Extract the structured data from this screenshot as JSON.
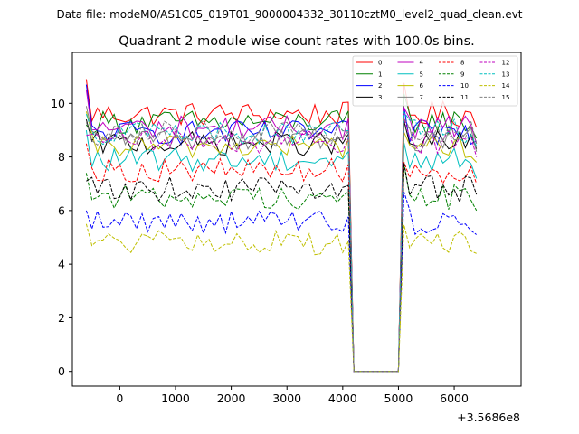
{
  "header": {
    "data_file": "Data file: modeM0/AS1C05_019T01_9000004332_30110cztM0_level2_quad_clean.evt"
  },
  "chart_data": {
    "type": "line",
    "title": "Quadrant 2 module wise count rates with 100.0s bins.",
    "xlabel": "",
    "ylabel": "",
    "x_offset_label": "+3.5686e8",
    "xlim": [
      -850,
      7200
    ],
    "ylim": [
      -0.55,
      11.9
    ],
    "x_ticks": [
      0,
      1000,
      2000,
      3000,
      4000,
      5000,
      6000
    ],
    "y_ticks": [
      0,
      2,
      4,
      6,
      8,
      10
    ],
    "legend_position": "top-right",
    "x_start": -600,
    "x_step": 100,
    "gap": {
      "drop_start": 4100,
      "zero_from": 4200,
      "zero_to": 5000,
      "rise_end": 5100,
      "x_end": 6400
    },
    "series": [
      {
        "name": "0",
        "color": "#ff0000",
        "dash": "solid",
        "level": 9.6,
        "start": 10.9,
        "end": 9.1
      },
      {
        "name": "1",
        "color": "#008000",
        "dash": "solid",
        "level": 9.3,
        "start": 9.2,
        "end": 8.7
      },
      {
        "name": "2",
        "color": "#0000ff",
        "dash": "solid",
        "level": 8.9,
        "start": 10.7,
        "end": 8.6
      },
      {
        "name": "3",
        "color": "#000000",
        "dash": "solid",
        "level": 8.5,
        "start": 9.4,
        "end": 8.3
      },
      {
        "name": "4",
        "color": "#bf00bf",
        "dash": "solid",
        "level": 9.1,
        "start": 10.5,
        "end": 8.5
      },
      {
        "name": "5",
        "color": "#00bfbf",
        "dash": "solid",
        "level": 7.9,
        "start": 9.0,
        "end": 7.2
      },
      {
        "name": "6",
        "color": "#bfbf00",
        "dash": "solid",
        "level": 8.4,
        "start": 9.7,
        "end": 7.8
      },
      {
        "name": "7",
        "color": "#808080",
        "dash": "solid",
        "level": 8.7,
        "start": 9.9,
        "end": 8.2
      },
      {
        "name": "8",
        "color": "#ff0000",
        "dash": "dashed",
        "level": 7.5,
        "start": 8.5,
        "end": 7.0
      },
      {
        "name": "9",
        "color": "#008000",
        "dash": "dashed",
        "level": 6.5,
        "start": 7.4,
        "end": 6.0
      },
      {
        "name": "10",
        "color": "#0000ff",
        "dash": "dashed",
        "level": 5.6,
        "start": 6.0,
        "end": 5.1
      },
      {
        "name": "11",
        "color": "#000000",
        "dash": "dashed",
        "level": 6.8,
        "start": 7.1,
        "end": 6.6
      },
      {
        "name": "12",
        "color": "#bf00bf",
        "dash": "dashed",
        "level": 8.6,
        "start": 8.8,
        "end": 8.0
      },
      {
        "name": "13",
        "color": "#00bfbf",
        "dash": "dashed",
        "level": 8.9,
        "start": 9.6,
        "end": 8.4
      },
      {
        "name": "14",
        "color": "#bfbf00",
        "dash": "dashed",
        "level": 4.8,
        "start": 5.5,
        "end": 4.4
      },
      {
        "name": "15",
        "color": "#808080",
        "dash": "dashed",
        "level": 8.9,
        "start": 9.3,
        "end": 8.5
      }
    ]
  }
}
